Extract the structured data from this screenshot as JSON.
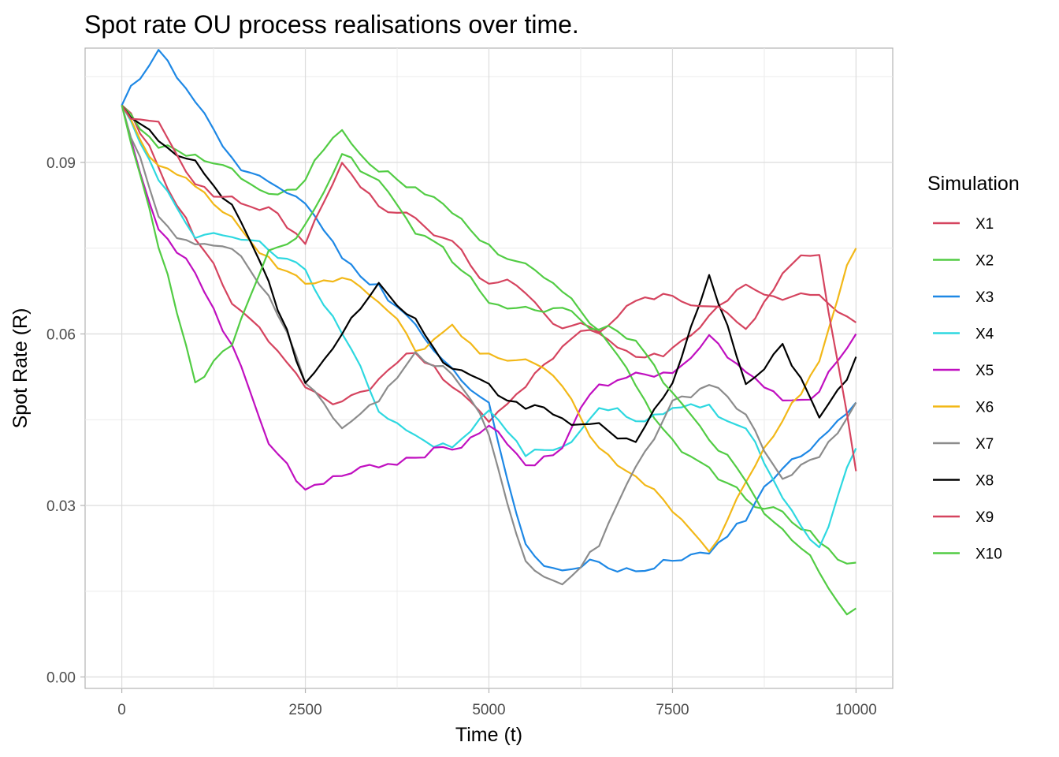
{
  "chart_data": {
    "type": "line",
    "title": "Spot rate OU process realisations over time.",
    "xlabel": "Time (t)",
    "ylabel": "Spot Rate (R)",
    "xlim": [
      -500,
      10500
    ],
    "ylim": [
      -0.002,
      0.11
    ],
    "x_ticks": [
      0,
      2500,
      5000,
      7500,
      10000
    ],
    "x_tick_labels": [
      "0",
      "2500",
      "5000",
      "7500",
      "10000"
    ],
    "y_ticks": [
      0,
      0.03,
      0.06,
      0.09
    ],
    "y_tick_labels": [
      "0.00",
      "0.03",
      "0.06",
      "0.09"
    ],
    "grid": true,
    "legend": {
      "title": "Simulation",
      "position": "right"
    },
    "x": [
      0,
      500,
      1000,
      1500,
      2000,
      2500,
      3000,
      3500,
      4000,
      4500,
      5000,
      5500,
      6000,
      6500,
      7000,
      7500,
      8000,
      8500,
      9000,
      9500,
      10000
    ],
    "series": [
      {
        "name": "X1",
        "color": "#D5445F",
        "values": [
          0.1,
          0.088,
          0.077,
          0.065,
          0.058,
          0.05,
          0.048,
          0.052,
          0.056,
          0.05,
          0.045,
          0.052,
          0.058,
          0.06,
          0.056,
          0.058,
          0.065,
          0.07,
          0.068,
          0.07,
          0.062
        ]
      },
      {
        "name": "X2",
        "color": "#52CC44",
        "values": [
          0.1,
          0.092,
          0.09,
          0.088,
          0.082,
          0.085,
          0.095,
          0.09,
          0.086,
          0.082,
          0.078,
          0.072,
          0.068,
          0.062,
          0.05,
          0.042,
          0.035,
          0.03,
          0.028,
          0.024,
          0.02
        ]
      },
      {
        "name": "X3",
        "color": "#1E88E5",
        "values": [
          0.1,
          0.108,
          0.098,
          0.09,
          0.085,
          0.08,
          0.072,
          0.068,
          0.06,
          0.052,
          0.045,
          0.022,
          0.018,
          0.02,
          0.018,
          0.02,
          0.022,
          0.028,
          0.036,
          0.04,
          0.048
        ]
      },
      {
        "name": "X4",
        "color": "#2ED8E0",
        "values": [
          0.1,
          0.088,
          0.078,
          0.076,
          0.072,
          0.07,
          0.06,
          0.045,
          0.042,
          0.04,
          0.048,
          0.038,
          0.042,
          0.048,
          0.045,
          0.046,
          0.048,
          0.042,
          0.03,
          0.022,
          0.04
        ]
      },
      {
        "name": "X5",
        "color": "#C010C0",
        "values": [
          0.1,
          0.08,
          0.072,
          0.06,
          0.045,
          0.035,
          0.036,
          0.038,
          0.04,
          0.042,
          0.046,
          0.04,
          0.042,
          0.052,
          0.055,
          0.054,
          0.06,
          0.052,
          0.046,
          0.05,
          0.06
        ]
      },
      {
        "name": "X6",
        "color": "#F2B818",
        "values": [
          0.1,
          0.09,
          0.088,
          0.082,
          0.076,
          0.07,
          0.072,
          0.066,
          0.058,
          0.062,
          0.058,
          0.055,
          0.05,
          0.04,
          0.036,
          0.03,
          0.025,
          0.035,
          0.045,
          0.055,
          0.075
        ]
      },
      {
        "name": "X7",
        "color": "#8C8C8C",
        "values": [
          0.1,
          0.082,
          0.076,
          0.072,
          0.065,
          0.05,
          0.042,
          0.048,
          0.055,
          0.052,
          0.04,
          0.02,
          0.015,
          0.022,
          0.035,
          0.046,
          0.05,
          0.046,
          0.035,
          0.038,
          0.048
        ]
      },
      {
        "name": "X8",
        "color": "#000000",
        "values": [
          0.1,
          0.092,
          0.09,
          0.082,
          0.07,
          0.052,
          0.06,
          0.068,
          0.064,
          0.056,
          0.052,
          0.048,
          0.047,
          0.045,
          0.042,
          0.052,
          0.07,
          0.052,
          0.058,
          0.046,
          0.056
        ]
      },
      {
        "name": "X9",
        "color": "#D5445F",
        "values": [
          0.1,
          0.096,
          0.088,
          0.084,
          0.082,
          0.076,
          0.088,
          0.082,
          0.08,
          0.078,
          0.07,
          0.068,
          0.062,
          0.06,
          0.064,
          0.066,
          0.062,
          0.06,
          0.07,
          0.074,
          0.036
        ]
      },
      {
        "name": "X10",
        "color": "#52CC44",
        "values": [
          0.1,
          0.075,
          0.052,
          0.06,
          0.075,
          0.08,
          0.09,
          0.085,
          0.078,
          0.072,
          0.066,
          0.064,
          0.066,
          0.062,
          0.06,
          0.05,
          0.042,
          0.036,
          0.028,
          0.02,
          0.012
        ]
      }
    ]
  }
}
